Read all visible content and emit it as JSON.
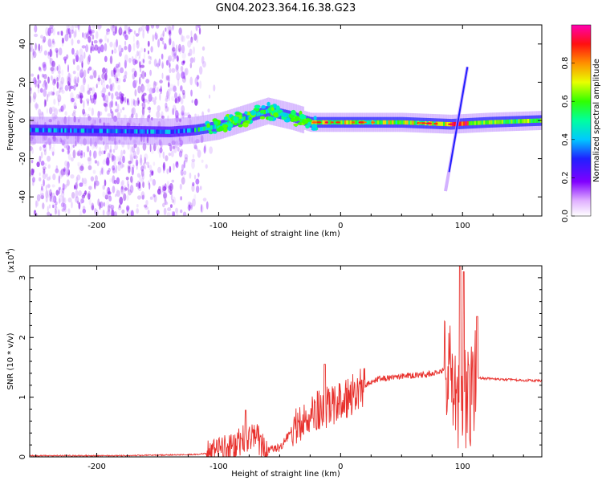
{
  "figure": {
    "title": "GN04.2023.364.16.38.G23"
  },
  "chart_data": [
    {
      "type": "heatmap",
      "xlabel": "Height of straight line (km)",
      "ylabel": "Frequency (Hz)",
      "xlim": [
        -255,
        165
      ],
      "ylim": [
        -50,
        50
      ],
      "xticks": [
        -200,
        -100,
        0,
        100
      ],
      "yticks": [
        -40,
        -20,
        0,
        20,
        40
      ],
      "colorbar": {
        "label": "Normalized spectral amplitude",
        "range": [
          0,
          1
        ],
        "ticks": [
          "0.0",
          "0.2",
          "0.4",
          "0.6",
          "0.8"
        ],
        "tick_values": [
          0,
          0.2,
          0.4,
          0.6,
          0.8
        ],
        "colors": [
          "#ffffff",
          "#a000ff",
          "#2000ff",
          "#00e0ff",
          "#00ff40",
          "#ffff00",
          "#ff8000",
          "#ff0000",
          "#ff00c0"
        ]
      },
      "band_center_hz": [
        {
          "x": -255,
          "y": -5
        },
        {
          "x": -140,
          "y": -6
        },
        {
          "x": -120,
          "y": -5
        },
        {
          "x": -100,
          "y": -3
        },
        {
          "x": -80,
          "y": 1
        },
        {
          "x": -60,
          "y": 5
        },
        {
          "x": -40,
          "y": 2
        },
        {
          "x": -25,
          "y": -1
        },
        {
          "x": 0,
          "y": -1
        },
        {
          "x": 50,
          "y": -1
        },
        {
          "x": 90,
          "y": -2
        },
        {
          "x": 120,
          "y": -1
        },
        {
          "x": 165,
          "y": 0
        }
      ],
      "chirp": {
        "x_start": 86,
        "y_start": -37,
        "x_end": 104,
        "y_end": 28
      },
      "noise_region_km": [
        -255,
        -115
      ]
    },
    {
      "type": "line",
      "xlabel": "Height of straight line (km)",
      "ylabel": "SNR (10 * v/v)",
      "multiplier": "(x10",
      "multiplier_exp": "4",
      "multiplier_close": ")",
      "xlim": [
        -255,
        165
      ],
      "ylim": [
        0,
        3.2
      ],
      "xticks": [
        -200,
        -100,
        0,
        100
      ],
      "yticks": [
        0,
        1,
        2,
        3
      ],
      "color": "#e8302c",
      "envelope": [
        {
          "x": -255,
          "y": 0.02
        },
        {
          "x": -180,
          "y": 0.02
        },
        {
          "x": -120,
          "y": 0.04
        },
        {
          "x": -100,
          "y": 0.08
        },
        {
          "x": -90,
          "y": 0.15
        },
        {
          "x": -80,
          "y": 0.3
        },
        {
          "x": -70,
          "y": 0.35
        },
        {
          "x": -60,
          "y": 0.1
        },
        {
          "x": -50,
          "y": 0.15
        },
        {
          "x": -40,
          "y": 0.45
        },
        {
          "x": -30,
          "y": 0.6
        },
        {
          "x": -20,
          "y": 0.75
        },
        {
          "x": -10,
          "y": 0.85
        },
        {
          "x": 0,
          "y": 0.9
        },
        {
          "x": 10,
          "y": 1.05
        },
        {
          "x": 20,
          "y": 1.2
        },
        {
          "x": 30,
          "y": 1.3
        },
        {
          "x": 50,
          "y": 1.35
        },
        {
          "x": 70,
          "y": 1.38
        },
        {
          "x": 88,
          "y": 1.45
        },
        {
          "x": 95,
          "y": 1.0
        },
        {
          "x": 100,
          "y": 0.9
        },
        {
          "x": 105,
          "y": 1.0
        },
        {
          "x": 112,
          "y": 1.32
        },
        {
          "x": 130,
          "y": 1.3
        },
        {
          "x": 165,
          "y": 1.27
        }
      ],
      "peaks": [
        {
          "x": -78,
          "y": 0.78
        },
        {
          "x": -13,
          "y": 1.55
        },
        {
          "x": 98,
          "y": 3.2
        },
        {
          "x": 101,
          "y": 3.1
        },
        {
          "x": 112,
          "y": 2.35
        }
      ]
    }
  ]
}
